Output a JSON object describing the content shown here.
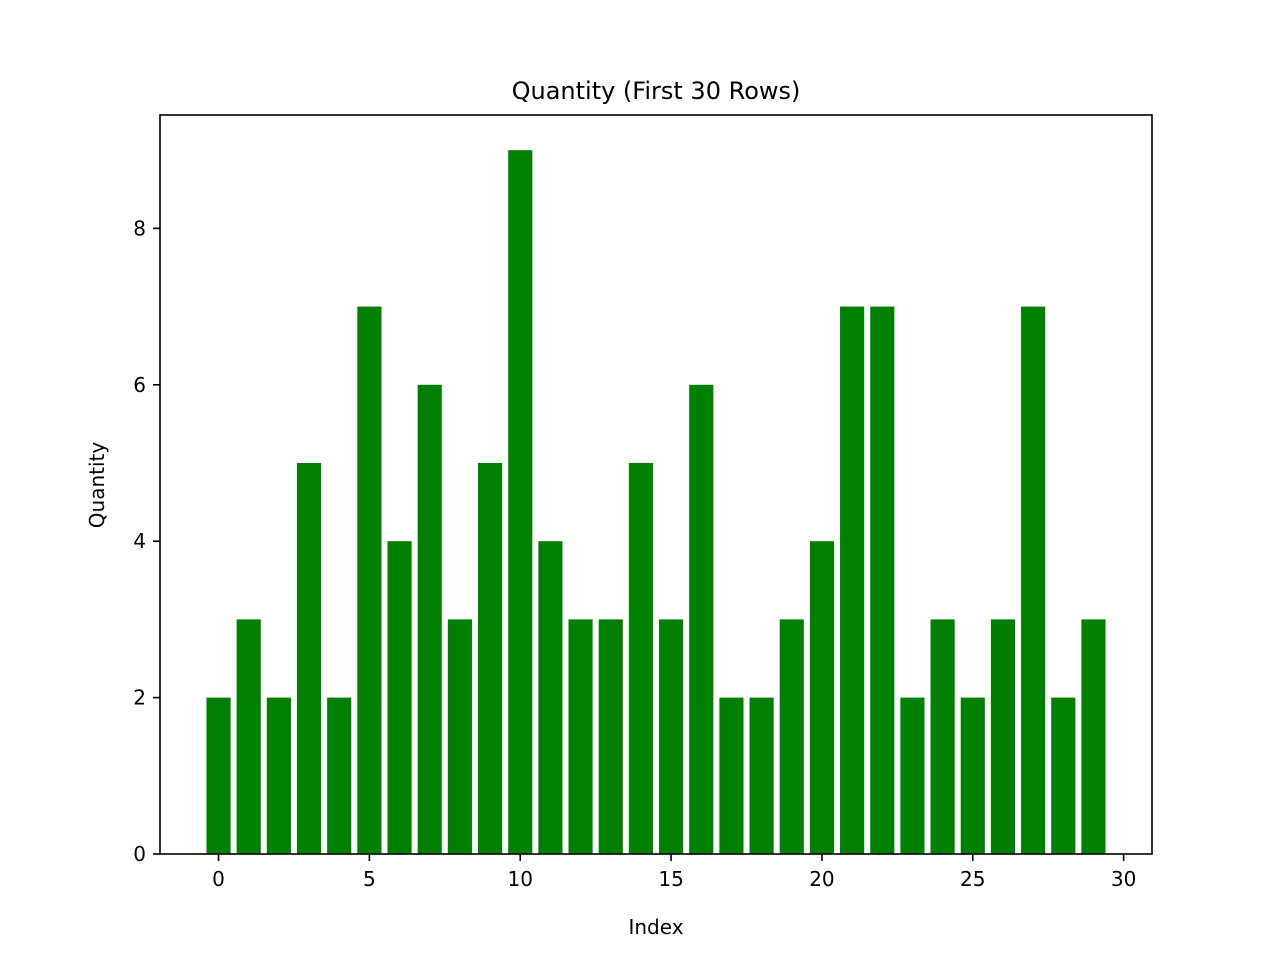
{
  "chart_data": {
    "type": "bar",
    "title": "Quantity (First 30 Rows)",
    "xlabel": "Index",
    "ylabel": "Quantity",
    "categories": [
      0,
      1,
      2,
      3,
      4,
      5,
      6,
      7,
      8,
      9,
      10,
      11,
      12,
      13,
      14,
      15,
      16,
      17,
      18,
      19,
      20,
      21,
      22,
      23,
      24,
      25,
      26,
      27,
      28,
      29
    ],
    "values": [
      2,
      3,
      2,
      5,
      2,
      7,
      4,
      6,
      3,
      5,
      9,
      4,
      3,
      3,
      5,
      3,
      6,
      2,
      2,
      3,
      4,
      7,
      7,
      2,
      3,
      2,
      3,
      7,
      2,
      3
    ],
    "xlim": [
      -1.94,
      30.94
    ],
    "ylim": [
      0,
      9.45
    ],
    "xticks": [
      0,
      5,
      10,
      15,
      20,
      25,
      30
    ],
    "yticks": [
      0,
      2,
      4,
      6,
      8
    ],
    "bar_color": "#008000",
    "grid": false,
    "legend": "none"
  }
}
